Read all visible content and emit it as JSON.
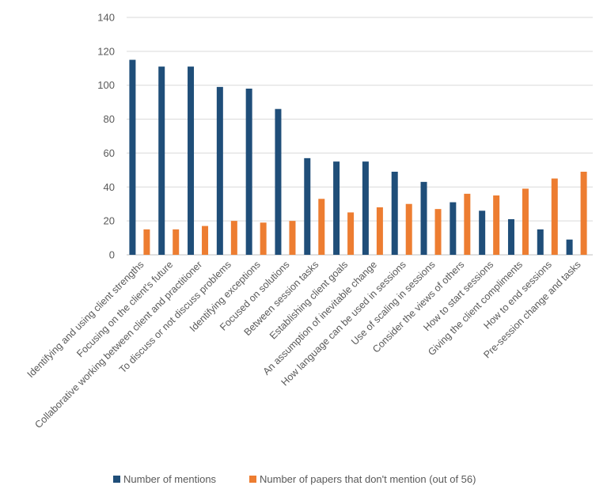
{
  "chart_data": {
    "type": "bar",
    "title": "",
    "xlabel": "",
    "ylabel": "",
    "ylim": [
      0,
      140
    ],
    "yticks": [
      0,
      20,
      40,
      60,
      80,
      100,
      120,
      140
    ],
    "grid": true,
    "legend_position": "bottom",
    "categories": [
      "Identifying and using client strengths",
      "Focusing on the client's future",
      "Collaborative working between client and practitioner",
      "To discuss or not discuss problems",
      "Identifying exceptions",
      "Focused on solutions",
      "Between session tasks",
      "Establishing client goals",
      "An assumption of inevitable change",
      "How language can be used in sessions",
      "Use of scaling in sessions",
      "Consider the views of others",
      "How to start sessions",
      "Giving the client compliments",
      "How to end sessions",
      "Pre-session change and tasks"
    ],
    "series": [
      {
        "name": "Number of mentions",
        "color": "#1f4e79",
        "values": [
          115,
          111,
          111,
          99,
          98,
          86,
          57,
          55,
          55,
          49,
          43,
          31,
          26,
          21,
          15,
          9
        ]
      },
      {
        "name": "Number of papers that don't mention (out of 56)",
        "color": "#ed7d31",
        "values": [
          15,
          15,
          17,
          20,
          19,
          20,
          33,
          25,
          28,
          30,
          27,
          36,
          35,
          39,
          45,
          49
        ]
      }
    ]
  }
}
